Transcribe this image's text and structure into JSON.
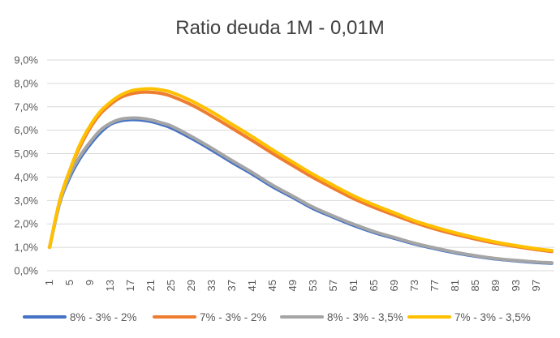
{
  "chart_data": {
    "type": "line",
    "title": "Ratio deuda 1M - 0,01M",
    "xlabel": "",
    "ylabel": "",
    "ylim": [
      0,
      0.09
    ],
    "ytick_values": [
      0,
      0.01,
      0.02,
      0.03,
      0.04,
      0.05,
      0.06,
      0.07,
      0.08,
      0.09
    ],
    "ytick_labels": [
      "0,0%",
      "1,0%",
      "2,0%",
      "3,0%",
      "4,0%",
      "5,0%",
      "6,0%",
      "7,0%",
      "8,0%",
      "9,0%"
    ],
    "xlim": [
      1,
      100
    ],
    "xtick_labels": [
      "1",
      "5",
      "9",
      "13",
      "17",
      "21",
      "25",
      "29",
      "33",
      "37",
      "41",
      "45",
      "49",
      "53",
      "57",
      "61",
      "65",
      "69",
      "73",
      "77",
      "81",
      "85",
      "89",
      "93",
      "97"
    ],
    "grid": true,
    "legend_position": "bottom",
    "series": [
      {
        "name": "8% - 3% - 2%",
        "color": "#4472C4",
        "x": [
          1,
          3,
          5,
          7,
          9,
          11,
          13,
          15,
          17,
          19,
          21,
          23,
          25,
          29,
          33,
          37,
          41,
          45,
          49,
          53,
          57,
          61,
          65,
          69,
          73,
          77,
          81,
          85,
          89,
          93,
          97,
          100
        ],
        "values": [
          0.01,
          0.029,
          0.04,
          0.048,
          0.054,
          0.059,
          0.0625,
          0.064,
          0.0645,
          0.0644,
          0.0637,
          0.0625,
          0.061,
          0.0565,
          0.0515,
          0.0462,
          0.0412,
          0.0358,
          0.0312,
          0.0265,
          0.0228,
          0.0193,
          0.0163,
          0.0138,
          0.0114,
          0.0094,
          0.0076,
          0.0062,
          0.005,
          0.0042,
          0.0035,
          0.0032
        ]
      },
      {
        "name": "7% - 3% - 2%",
        "color": "#ED7D31",
        "x": [
          1,
          3,
          5,
          7,
          9,
          11,
          13,
          15,
          17,
          19,
          21,
          23,
          25,
          29,
          33,
          37,
          41,
          45,
          49,
          53,
          57,
          61,
          65,
          69,
          73,
          77,
          81,
          85,
          89,
          93,
          97,
          100
        ],
        "values": [
          0.01,
          0.03,
          0.043,
          0.053,
          0.061,
          0.067,
          0.071,
          0.074,
          0.0755,
          0.0762,
          0.0762,
          0.0757,
          0.0745,
          0.0708,
          0.066,
          0.0608,
          0.0555,
          0.05,
          0.0448,
          0.0397,
          0.0351,
          0.0307,
          0.027,
          0.0237,
          0.0205,
          0.0178,
          0.0155,
          0.0135,
          0.0117,
          0.0103,
          0.009,
          0.0082
        ]
      },
      {
        "name": "8% - 3% - 3,5%",
        "color": "#A5A5A5",
        "x": [
          1,
          3,
          5,
          7,
          9,
          11,
          13,
          15,
          17,
          19,
          21,
          23,
          25,
          29,
          33,
          37,
          41,
          45,
          49,
          53,
          57,
          61,
          65,
          69,
          73,
          77,
          81,
          85,
          89,
          93,
          97,
          100
        ],
        "values": [
          0.01,
          0.029,
          0.041,
          0.049,
          0.055,
          0.06,
          0.063,
          0.0647,
          0.0652,
          0.0651,
          0.0644,
          0.0632,
          0.0618,
          0.0573,
          0.0523,
          0.047,
          0.0419,
          0.0365,
          0.0318,
          0.0271,
          0.0233,
          0.0198,
          0.0167,
          0.0142,
          0.0117,
          0.0097,
          0.0079,
          0.0064,
          0.0052,
          0.0044,
          0.0037,
          0.0034
        ]
      },
      {
        "name": "7% - 3% - 3,5%",
        "color": "#FFC000",
        "x": [
          1,
          3,
          5,
          7,
          9,
          11,
          13,
          15,
          17,
          19,
          21,
          23,
          25,
          29,
          33,
          37,
          41,
          45,
          49,
          53,
          57,
          61,
          65,
          69,
          73,
          77,
          81,
          85,
          89,
          93,
          97,
          100
        ],
        "values": [
          0.01,
          0.03,
          0.043,
          0.054,
          0.062,
          0.068,
          0.072,
          0.075,
          0.0768,
          0.0775,
          0.0777,
          0.0772,
          0.0762,
          0.0725,
          0.0678,
          0.0625,
          0.0572,
          0.0516,
          0.0463,
          0.0411,
          0.0364,
          0.0319,
          0.0281,
          0.0247,
          0.0213,
          0.0186,
          0.0162,
          0.0141,
          0.0122,
          0.0107,
          0.0094,
          0.0086
        ]
      }
    ]
  }
}
